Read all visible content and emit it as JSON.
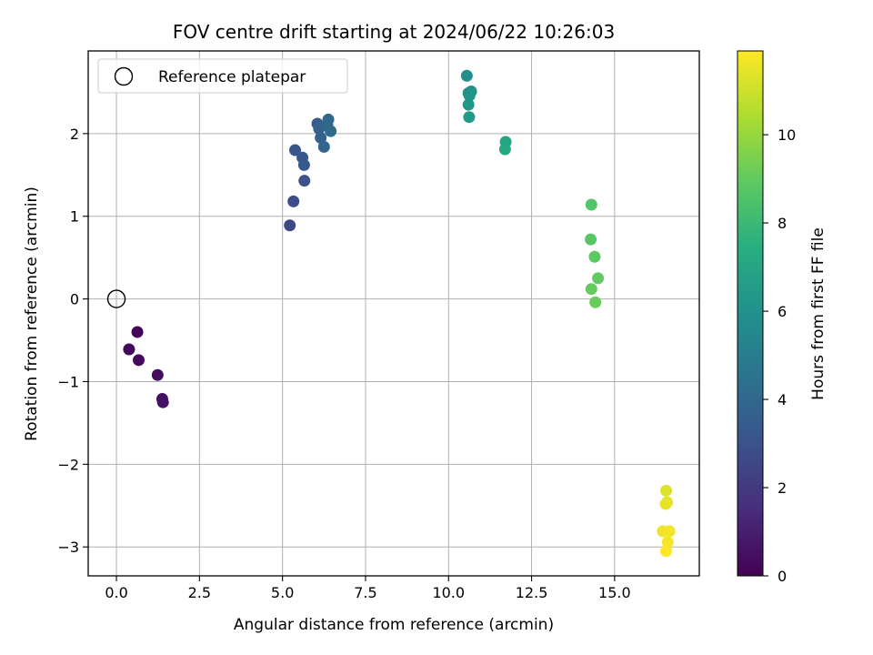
{
  "chart_data": {
    "type": "scatter",
    "title": "FOV centre drift starting at 2024/06/22 10:26:03",
    "xlabel": "Angular distance from reference (arcmin)",
    "ylabel": "Rotation from reference (arcmin)",
    "xlim": [
      -0.85,
      17.55
    ],
    "ylim": [
      -3.35,
      3.0
    ],
    "xticks": [
      0.0,
      2.5,
      5.0,
      7.5,
      10.0,
      12.5,
      15.0
    ],
    "xtick_labels": [
      "0.0",
      "2.5",
      "5.0",
      "7.5",
      "10.0",
      "12.5",
      "15.0"
    ],
    "yticks": [
      -3,
      -2,
      -1,
      0,
      1,
      2
    ],
    "ytick_labels": [
      "−3",
      "−2",
      "−1",
      "0",
      "1",
      "2"
    ],
    "grid": true,
    "legend": {
      "position": "top-left",
      "entries": [
        {
          "label": "Reference platepar",
          "marker": "open-circle"
        }
      ]
    },
    "reference_point": {
      "x": 0.0,
      "y": 0.0
    },
    "colorbar": {
      "label": "Hours from first FF file",
      "colormap": "viridis",
      "range": [
        0,
        11.9
      ],
      "ticks": [
        0,
        2,
        4,
        6,
        8,
        10
      ],
      "tick_labels": [
        "0",
        "2",
        "4",
        "6",
        "8",
        "10"
      ]
    },
    "points": [
      {
        "x": 0.63,
        "y": -0.4,
        "c": 0.1
      },
      {
        "x": 0.38,
        "y": -0.61,
        "c": 0.2
      },
      {
        "x": 0.67,
        "y": -0.74,
        "c": 0.3
      },
      {
        "x": 1.24,
        "y": -0.92,
        "c": 0.4
      },
      {
        "x": 1.38,
        "y": -1.21,
        "c": 0.5
      },
      {
        "x": 1.4,
        "y": -1.25,
        "c": 0.6
      },
      {
        "x": 5.22,
        "y": 0.89,
        "c": 2.6
      },
      {
        "x": 5.33,
        "y": 1.18,
        "c": 2.8
      },
      {
        "x": 5.66,
        "y": 1.43,
        "c": 3.0
      },
      {
        "x": 5.38,
        "y": 1.8,
        "c": 3.2
      },
      {
        "x": 5.6,
        "y": 1.71,
        "c": 3.3
      },
      {
        "x": 5.65,
        "y": 1.62,
        "c": 3.4
      },
      {
        "x": 6.05,
        "y": 2.12,
        "c": 3.6
      },
      {
        "x": 6.15,
        "y": 1.95,
        "c": 3.7
      },
      {
        "x": 6.1,
        "y": 2.06,
        "c": 3.8
      },
      {
        "x": 6.25,
        "y": 1.84,
        "c": 3.9
      },
      {
        "x": 6.35,
        "y": 2.1,
        "c": 4.0
      },
      {
        "x": 6.38,
        "y": 2.17,
        "c": 4.1
      },
      {
        "x": 6.45,
        "y": 2.03,
        "c": 4.2
      },
      {
        "x": 10.55,
        "y": 2.7,
        "c": 5.9
      },
      {
        "x": 10.6,
        "y": 2.49,
        "c": 6.0
      },
      {
        "x": 10.68,
        "y": 2.51,
        "c": 6.1
      },
      {
        "x": 10.63,
        "y": 2.46,
        "c": 6.2
      },
      {
        "x": 10.6,
        "y": 2.35,
        "c": 6.3
      },
      {
        "x": 10.62,
        "y": 2.2,
        "c": 6.4
      },
      {
        "x": 11.72,
        "y": 1.9,
        "c": 7.0
      },
      {
        "x": 11.7,
        "y": 1.81,
        "c": 7.1
      },
      {
        "x": 14.3,
        "y": 1.14,
        "c": 8.7
      },
      {
        "x": 14.28,
        "y": 0.72,
        "c": 8.8
      },
      {
        "x": 14.4,
        "y": 0.51,
        "c": 8.9
      },
      {
        "x": 14.5,
        "y": 0.25,
        "c": 9.0
      },
      {
        "x": 14.3,
        "y": 0.12,
        "c": 9.1
      },
      {
        "x": 14.42,
        "y": -0.04,
        "c": 9.2
      },
      {
        "x": 16.55,
        "y": -2.32,
        "c": 11.3
      },
      {
        "x": 16.58,
        "y": -2.46,
        "c": 11.4
      },
      {
        "x": 16.54,
        "y": -2.48,
        "c": 11.5
      },
      {
        "x": 16.45,
        "y": -2.81,
        "c": 11.6
      },
      {
        "x": 16.65,
        "y": -2.81,
        "c": 11.7
      },
      {
        "x": 16.6,
        "y": -2.94,
        "c": 11.8
      },
      {
        "x": 16.55,
        "y": -3.05,
        "c": 11.9
      }
    ]
  }
}
